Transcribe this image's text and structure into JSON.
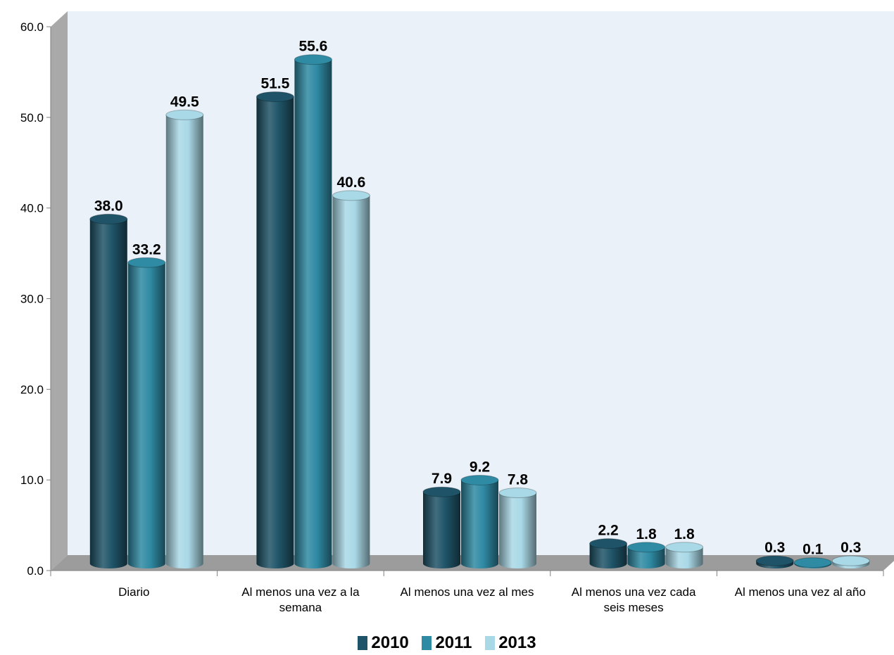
{
  "chart_data": {
    "type": "bar",
    "categories": [
      [
        "Diario"
      ],
      [
        "Al menos una vez a la",
        "semana"
      ],
      [
        "Al menos una vez al mes"
      ],
      [
        "Al menos una vez cada",
        "seis meses"
      ],
      [
        "Al menos una vez al año"
      ]
    ],
    "series": [
      {
        "name": "2010",
        "color": "#1f5468",
        "values": [
          38.0,
          51.5,
          7.9,
          2.2,
          0.3
        ]
      },
      {
        "name": "2011",
        "color": "#2f8aa3",
        "values": [
          33.2,
          55.6,
          9.2,
          1.8,
          0.1
        ]
      },
      {
        "name": "2013",
        "color": "#a9d8e6",
        "values": [
          49.5,
          40.6,
          7.8,
          1.8,
          0.3
        ]
      }
    ],
    "value_labels": [
      [
        "38.0",
        "51.5",
        "7.9",
        "2.2",
        "0.3"
      ],
      [
        "33.2",
        "55.6",
        "9.2",
        "1.8",
        "0.1"
      ],
      [
        "49.5",
        "40.6",
        "7.8",
        "1.8",
        "0.3"
      ]
    ],
    "yticks": [
      "0.0",
      "10.0",
      "20.0",
      "30.0",
      "40.0",
      "50.0",
      "60.0"
    ],
    "ylim": [
      0,
      60
    ],
    "title": "",
    "xlabel": "",
    "ylabel": "",
    "legend_position": "bottom"
  }
}
